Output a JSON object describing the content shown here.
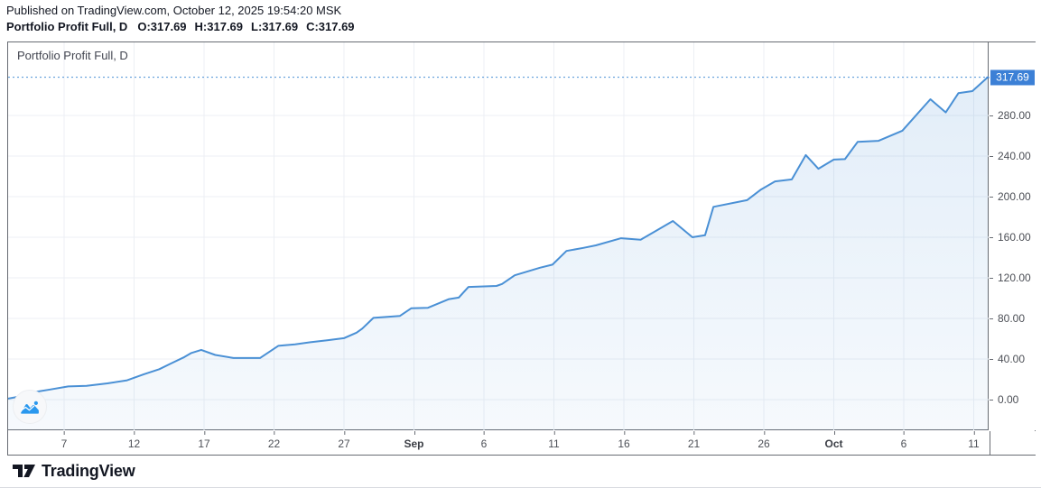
{
  "header": {
    "published_line": "Published on TradingView.com, October 12, 2025 19:54:20 MSK",
    "symbol_title": "Portfolio Profit Full, D",
    "ohlc": [
      "O:317.69",
      "H:317.69",
      "L:317.69",
      "C:317.69"
    ]
  },
  "chart": {
    "legend": "Portfolio Profit Full, D",
    "last_price_label": "317.69"
  },
  "chart_data": {
    "type": "area",
    "title": "Portfolio Profit Full, D",
    "timeframe": "D",
    "last_price": 317.69,
    "ylim": [
      -30.5,
      352
    ],
    "xlim_days": [
      0,
      70.1
    ],
    "grid": true,
    "y_ticks": [
      0,
      40,
      80,
      120,
      160,
      200,
      240,
      280
    ],
    "x_ticks": [
      {
        "label": "7",
        "d": 4,
        "bold": false
      },
      {
        "label": "12",
        "d": 9,
        "bold": false
      },
      {
        "label": "17",
        "d": 14,
        "bold": false
      },
      {
        "label": "22",
        "d": 19,
        "bold": false
      },
      {
        "label": "27",
        "d": 24,
        "bold": false
      },
      {
        "label": "Sep",
        "d": 29,
        "bold": true
      },
      {
        "label": "6",
        "d": 34,
        "bold": false
      },
      {
        "label": "11",
        "d": 39,
        "bold": false
      },
      {
        "label": "16",
        "d": 44,
        "bold": false
      },
      {
        "label": "21",
        "d": 49,
        "bold": false
      },
      {
        "label": "26",
        "d": 54,
        "bold": false
      },
      {
        "label": "Oct",
        "d": 59,
        "bold": true
      },
      {
        "label": "6",
        "d": 64,
        "bold": false
      },
      {
        "label": "11",
        "d": 69,
        "bold": false
      }
    ],
    "points": [
      [
        0,
        1
      ],
      [
        0.8,
        3
      ],
      [
        1.7,
        7
      ],
      [
        3,
        10
      ],
      [
        4.3,
        13
      ],
      [
        5.6,
        13.5
      ],
      [
        7.1,
        16
      ],
      [
        8.5,
        19
      ],
      [
        9.7,
        25
      ],
      [
        10.8,
        30
      ],
      [
        11.7,
        36
      ],
      [
        12.6,
        42
      ],
      [
        13.1,
        46
      ],
      [
        13.8,
        49
      ],
      [
        14.8,
        44
      ],
      [
        16.1,
        41
      ],
      [
        18,
        41
      ],
      [
        19.3,
        53
      ],
      [
        20.5,
        54.5
      ],
      [
        21.6,
        56.5
      ],
      [
        22.8,
        58.5
      ],
      [
        24,
        60.5
      ],
      [
        24.9,
        66
      ],
      [
        25.3,
        70
      ],
      [
        26.1,
        80.5
      ],
      [
        28,
        82.5
      ],
      [
        28.8,
        90
      ],
      [
        30,
        90.5
      ],
      [
        31.5,
        99
      ],
      [
        32.2,
        100.5
      ],
      [
        32.9,
        111
      ],
      [
        34.9,
        112
      ],
      [
        35.3,
        114
      ],
      [
        36.2,
        122.5
      ],
      [
        38,
        130
      ],
      [
        38.9,
        133
      ],
      [
        39.9,
        146.5
      ],
      [
        41.1,
        149.5
      ],
      [
        42,
        152
      ],
      [
        43.8,
        159
      ],
      [
        45.2,
        157.5
      ],
      [
        47.5,
        176
      ],
      [
        48.9,
        160
      ],
      [
        49.8,
        162
      ],
      [
        50.4,
        190
      ],
      [
        52.8,
        196.5
      ],
      [
        53.8,
        207
      ],
      [
        54.8,
        215
      ],
      [
        56,
        217
      ],
      [
        57,
        241
      ],
      [
        57.9,
        227.5
      ],
      [
        59,
        236.5
      ],
      [
        59.8,
        237
      ],
      [
        60.7,
        254
      ],
      [
        62.2,
        255
      ],
      [
        63.9,
        265
      ],
      [
        65.9,
        296
      ],
      [
        67,
        283
      ],
      [
        67.9,
        302
      ],
      [
        68.9,
        304
      ],
      [
        70,
        317.69
      ]
    ]
  },
  "footer": {
    "logo_text": "TradingView"
  },
  "colors": {
    "line": "#4a90d5",
    "area_fill": "#4a90d5",
    "price_badge": "#3c80d6",
    "grid": "#eceff4",
    "frame": "#686c73",
    "axis_text": "#4c4f56",
    "header_text": "#131722",
    "watermark_icon": "#2b98ee"
  }
}
